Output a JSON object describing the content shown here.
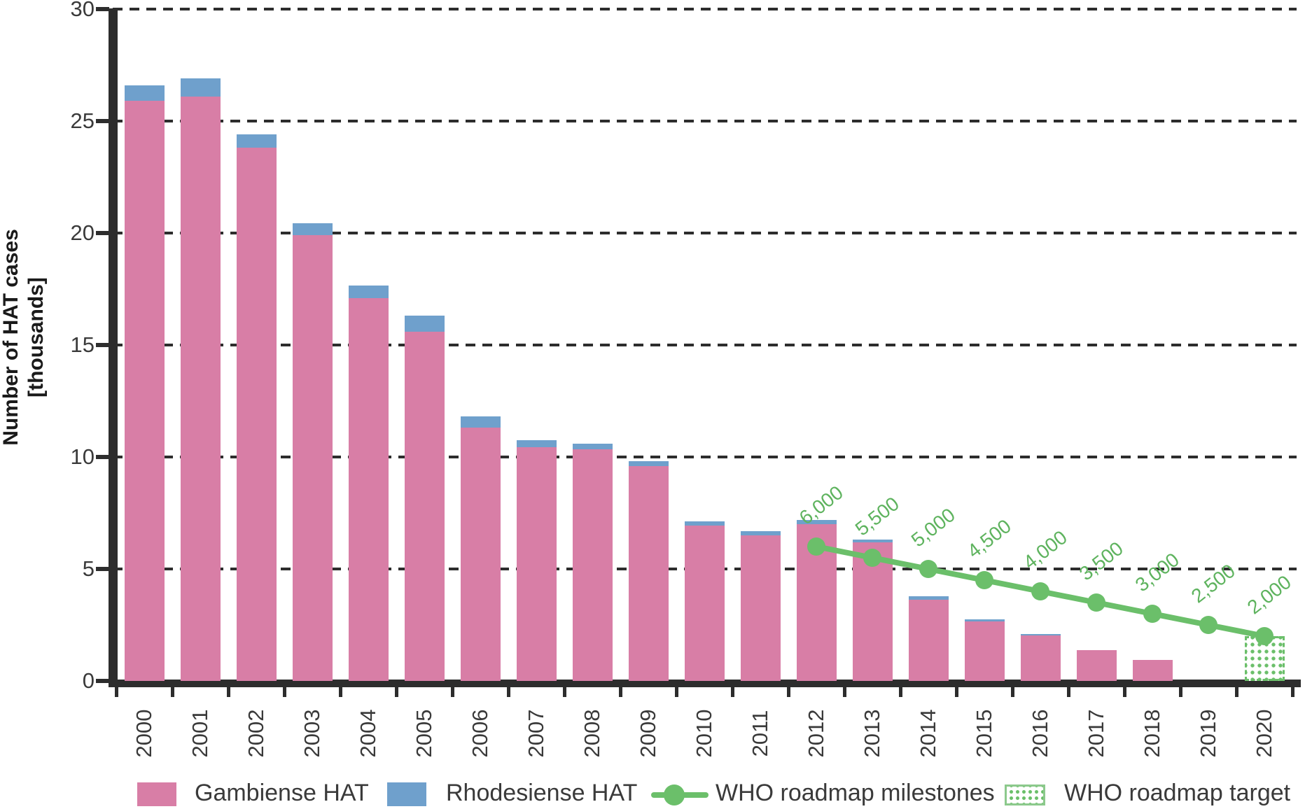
{
  "y_axis": {
    "title_lines": [
      "Number of HAT cases",
      "[thousands]"
    ],
    "ticks": [
      0,
      5,
      10,
      15,
      20,
      25,
      30
    ],
    "tick_labels": [
      "0",
      "5",
      "10",
      "15",
      "20",
      "25",
      "30"
    ]
  },
  "x_axis": {
    "labels": [
      "2000",
      "2001",
      "2002",
      "2003",
      "2004",
      "2005",
      "2006",
      "2007",
      "2008",
      "2009",
      "2010",
      "2011",
      "2012",
      "2013",
      "2014",
      "2015",
      "2016",
      "2017",
      "2018",
      "2019",
      "2020"
    ]
  },
  "colors": {
    "gambiense_pink": "#d87ea6",
    "rhodesiense_blue": "#6fa0cc",
    "roadmap_green": "#6bbf6a",
    "grid_dark": "#2d2d2d",
    "text_dark": "#3a3a3a"
  },
  "chart_data": {
    "type": "bar",
    "subtype": "stacked-bars-with-line-overlay",
    "title": "",
    "xlabel": "",
    "ylabel": "Number of HAT cases [thousands]",
    "ylim": [
      0,
      30
    ],
    "grid": "horizontal-dashed",
    "legend_position": "bottom",
    "categories": [
      2000,
      2001,
      2002,
      2003,
      2004,
      2005,
      2006,
      2007,
      2008,
      2009,
      2010,
      2011,
      2012,
      2013,
      2014,
      2015,
      2016,
      2017,
      2018,
      2019,
      2020
    ],
    "series": [
      {
        "name": "Gambiense HAT",
        "type": "bar-stack-bottom",
        "color": "#d87ea6",
        "values": [
          25.9,
          26.1,
          23.8,
          19.9,
          17.1,
          15.6,
          11.3,
          10.45,
          10.35,
          9.6,
          6.95,
          6.5,
          7.0,
          6.2,
          3.63,
          2.65,
          2.03,
          1.38,
          0.94,
          null,
          null
        ]
      },
      {
        "name": "Rhodesiense HAT",
        "type": "bar-stack-top",
        "color": "#6fa0cc",
        "values": [
          0.7,
          0.8,
          0.6,
          0.55,
          0.55,
          0.7,
          0.5,
          0.3,
          0.25,
          0.2,
          0.18,
          0.18,
          0.18,
          0.1,
          0.15,
          0.1,
          0.07,
          0,
          0,
          null,
          null
        ]
      },
      {
        "name": "WHO roadmap milestones",
        "type": "line",
        "color": "#6bbf6a",
        "x": [
          2012,
          2013,
          2014,
          2015,
          2016,
          2017,
          2018,
          2019,
          2020
        ],
        "values": [
          6.0,
          5.5,
          5.0,
          4.5,
          4.0,
          3.5,
          3.0,
          2.5,
          2.0
        ],
        "point_labels": [
          "6,000",
          "5,500",
          "5,000",
          "4,500",
          "4,000",
          "3,500",
          "3,000",
          "2,500",
          "2,000"
        ]
      },
      {
        "name": "WHO roadmap target",
        "type": "pattern-bar",
        "color": "#6bbf6a",
        "x": 2020,
        "value": 2.0
      }
    ]
  },
  "legend": {
    "items": [
      {
        "label": "Gambiense HAT",
        "swatch": "pink-fill"
      },
      {
        "label": "Rhodesiense HAT",
        "swatch": "blue-fill"
      },
      {
        "label": "WHO roadmap milestones",
        "swatch": "green-line-dot"
      },
      {
        "label": "WHO roadmap target",
        "swatch": "green-dotted-box"
      }
    ]
  }
}
